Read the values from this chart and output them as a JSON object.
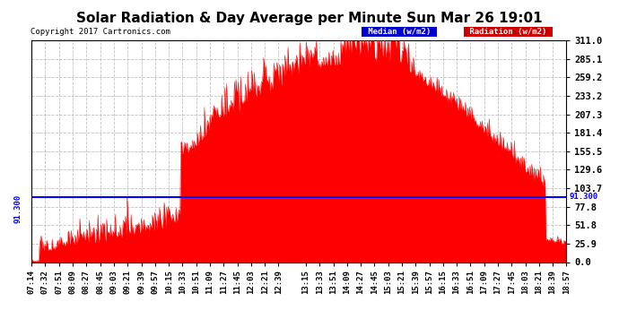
{
  "title": "Solar Radiation & Day Average per Minute Sun Mar 26 19:01",
  "copyright": "Copyright 2017 Cartronics.com",
  "median_value": 91.3,
  "y_max": 311.0,
  "y_min": 0.0,
  "y_ticks": [
    0.0,
    25.9,
    51.8,
    77.8,
    103.7,
    129.6,
    155.5,
    181.4,
    207.3,
    233.2,
    259.2,
    285.1,
    311.0
  ],
  "background_color": "#ffffff",
  "fill_color": "#ff0000",
  "median_color": "#0000ff",
  "grid_color": "#c0c0c0",
  "title_fontsize": 11,
  "x_labels": [
    "07:14",
    "07:32",
    "07:51",
    "08:09",
    "08:27",
    "08:45",
    "09:03",
    "09:21",
    "09:39",
    "09:57",
    "10:15",
    "10:33",
    "10:51",
    "11:09",
    "11:27",
    "11:45",
    "12:03",
    "12:21",
    "12:39",
    "13:15",
    "13:33",
    "13:51",
    "14:09",
    "14:27",
    "14:45",
    "15:03",
    "15:21",
    "15:39",
    "15:57",
    "16:15",
    "16:33",
    "16:51",
    "17:09",
    "17:27",
    "17:45",
    "18:03",
    "18:21",
    "18:39",
    "18:57"
  ],
  "legend_median_bg": "#0000cc",
  "legend_radiation_bg": "#cc0000"
}
